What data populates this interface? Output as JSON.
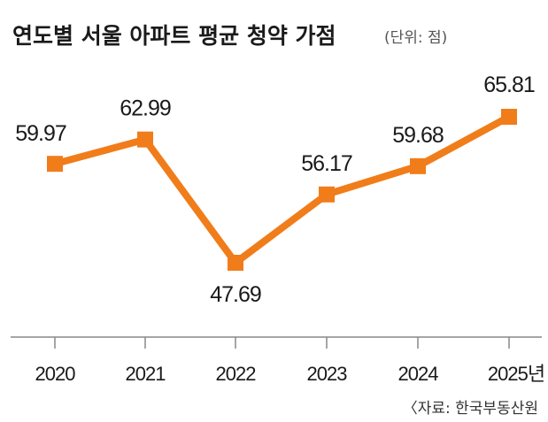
{
  "chart_data": {
    "type": "line",
    "title": "연도별 서울 아파트 평균 청약 가점",
    "unit": "(단위: 점)",
    "categories": [
      "2020",
      "2021",
      "2022",
      "2023",
      "2024",
      "2025년"
    ],
    "values": [
      59.97,
      62.99,
      47.69,
      56.17,
      59.68,
      65.81
    ],
    "value_labels": [
      "59.97",
      "62.99",
      "47.69",
      "56.17",
      "59.68",
      "65.81"
    ],
    "series": [
      {
        "values": [
          59.97,
          62.99,
          47.69,
          56.17,
          59.68,
          65.81
        ]
      }
    ],
    "ylim": [
      40,
      70
    ],
    "grid": false,
    "legend": "none",
    "source": "〈자료: 한국부동산원",
    "color": "#f07d1a"
  }
}
